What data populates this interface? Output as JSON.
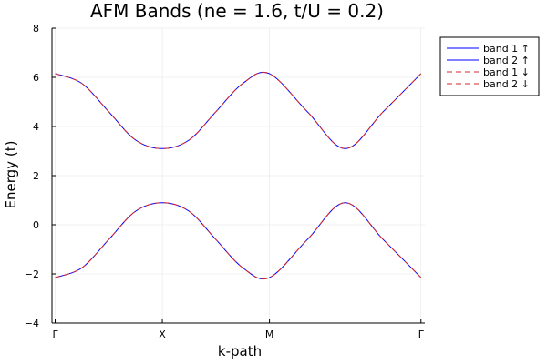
{
  "chart_data": {
    "type": "line",
    "title": "AFM Bands (ne = 1.6, t/U = 0.2)",
    "xlabel": "k-path",
    "ylabel": "Energy (t)",
    "x_tick_labels": [
      "Γ",
      "X",
      "M",
      "Γ"
    ],
    "x_tick_positions": [
      0,
      1,
      2,
      3.414
    ],
    "xlim": [
      -0.03,
      3.45
    ],
    "ylim": [
      -4,
      8
    ],
    "y_ticks": [
      -4,
      -2,
      0,
      2,
      4,
      6,
      8
    ],
    "grid": true,
    "legend_position": "outside-top-right",
    "legend": {
      "entries": [
        {
          "label": "band 1 ↑",
          "color": "#0000ff",
          "style": "solid"
        },
        {
          "label": "band 2 ↑",
          "color": "#0000ff",
          "style": "solid"
        },
        {
          "label": "band 1 ↓",
          "color": "#d62728",
          "style": "dashed"
        },
        {
          "label": "band 2 ↓",
          "color": "#d62728",
          "style": "dashed"
        }
      ]
    },
    "x": [
      0,
      0.25,
      0.5,
      0.75,
      1,
      1.25,
      1.5,
      1.75,
      2,
      2.354,
      2.707,
      3.061,
      3.414
    ],
    "series": [
      {
        "name": "band 1 ↑",
        "color": "#0000ff",
        "dash": false,
        "values": [
          -2.15,
          -1.75,
          -0.6,
          0.55,
          0.9,
          0.55,
          -0.6,
          -1.75,
          -2.15,
          -0.6,
          0.9,
          -0.6,
          -2.15
        ]
      },
      {
        "name": "band 2 ↑",
        "color": "#0000ff",
        "dash": false,
        "values": [
          6.15,
          5.75,
          4.6,
          3.45,
          3.1,
          3.45,
          4.6,
          5.75,
          6.15,
          4.6,
          3.1,
          4.6,
          6.15
        ]
      },
      {
        "name": "band 1 ↓",
        "color": "#d62728",
        "dash": true,
        "values": [
          -2.15,
          -1.75,
          -0.6,
          0.55,
          0.9,
          0.55,
          -0.6,
          -1.75,
          -2.15,
          -0.6,
          0.9,
          -0.6,
          -2.15
        ]
      },
      {
        "name": "band 2 ↓",
        "color": "#d62728",
        "dash": true,
        "values": [
          6.15,
          5.75,
          4.6,
          3.45,
          3.1,
          3.45,
          4.6,
          5.75,
          6.15,
          4.6,
          3.1,
          4.6,
          6.15
        ]
      }
    ]
  }
}
